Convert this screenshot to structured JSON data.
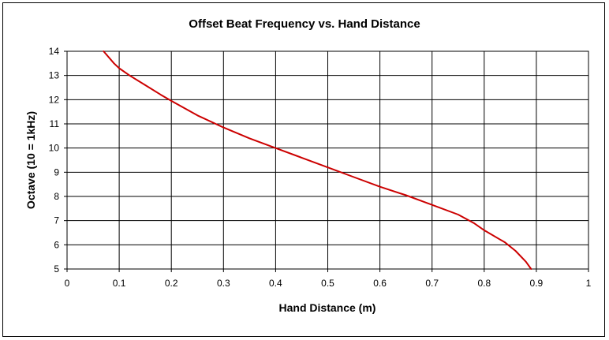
{
  "chart_data": {
    "type": "line",
    "title": "Offset Beat Frequency vs. Hand Distance",
    "xlabel": "Hand Distance (m)",
    "ylabel": "Octave (10 = 1kHz)",
    "xlim": [
      0,
      1
    ],
    "ylim": [
      5,
      14
    ],
    "xticks": [
      "0",
      "0.1",
      "0.2",
      "0.3",
      "0.4",
      "0.5",
      "0.6",
      "0.7",
      "0.8",
      "0.9",
      "1"
    ],
    "yticks": [
      "5",
      "6",
      "7",
      "8",
      "9",
      "10",
      "11",
      "12",
      "13",
      "14"
    ],
    "grid": true,
    "legend": "none",
    "series": [
      {
        "color": "#cc0000",
        "x": [
          0.07,
          0.09,
          0.1,
          0.12,
          0.15,
          0.18,
          0.2,
          0.25,
          0.3,
          0.35,
          0.4,
          0.45,
          0.5,
          0.55,
          0.6,
          0.65,
          0.7,
          0.75,
          0.78,
          0.8,
          0.84,
          0.86,
          0.88,
          0.89
        ],
        "y": [
          14.0,
          13.5,
          13.3,
          13.0,
          12.6,
          12.2,
          11.95,
          11.35,
          10.85,
          10.4,
          10.0,
          9.6,
          9.2,
          8.8,
          8.4,
          8.05,
          7.65,
          7.25,
          6.9,
          6.6,
          6.1,
          5.75,
          5.3,
          5.0
        ]
      }
    ]
  }
}
